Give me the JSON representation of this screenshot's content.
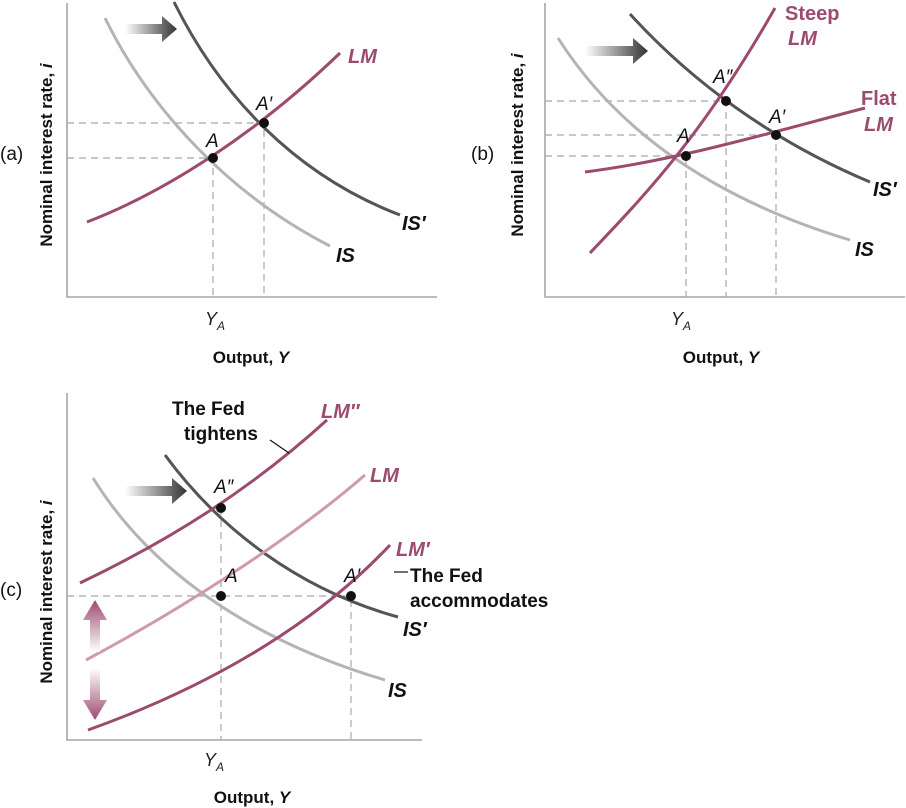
{
  "axis_y_label": "Nominal interest rate, ",
  "axis_y_var": "i",
  "axis_x_label": "Output, ",
  "axis_x_var": "Y",
  "tick_y_main": "Y",
  "tick_y_sub": "A",
  "colors": {
    "is": "#b4b4b4",
    "is_shifted": "#555555",
    "lm": "#9c4a6e",
    "lm_light": "#cf9ab0",
    "guide": "#a6a6a6"
  },
  "panels": {
    "a": {
      "label": "(a)",
      "point_a": "A",
      "point_a1": "A′",
      "curve_lm": "LM",
      "curve_is": "IS",
      "curve_is1": "IS′"
    },
    "b": {
      "label": "(b)",
      "point_a": "A",
      "point_a1": "A′",
      "point_a2": "A″",
      "steep_line1": "Steep",
      "steep_line2": "LM",
      "flat_line1": "Flat",
      "flat_line2": "LM",
      "curve_is": "IS",
      "curve_is1": "IS′"
    },
    "c": {
      "label": "(c)",
      "point_a": "A",
      "point_a1": "A′",
      "point_a2": "A″",
      "curve_lm": "LM",
      "curve_lm1": "LM′",
      "curve_lm2": "LM″",
      "curve_is": "IS",
      "curve_is1": "IS′",
      "tightens_line1": "The Fed",
      "tightens_line2": "tightens",
      "accommodates_line1": "The Fed",
      "accommodates_line2": "accommodates"
    }
  }
}
